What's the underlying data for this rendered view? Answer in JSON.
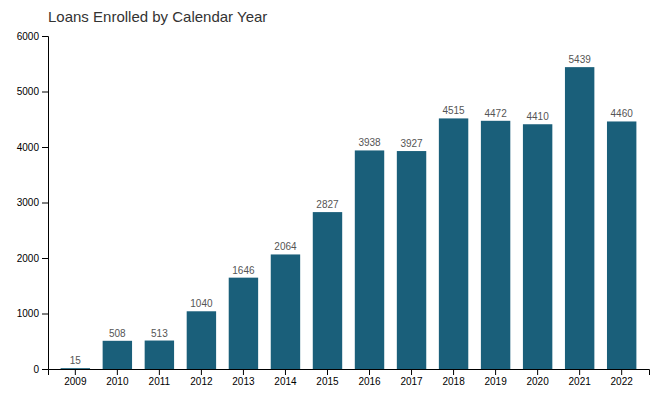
{
  "chart_data": {
    "type": "bar",
    "title": "Loans Enrolled by Calendar Year",
    "categories": [
      "2009",
      "2010",
      "2011",
      "2012",
      "2013",
      "2014",
      "2015",
      "2016",
      "2017",
      "2018",
      "2019",
      "2020",
      "2021",
      "2022"
    ],
    "values": [
      15,
      508,
      513,
      1040,
      1646,
      2064,
      2827,
      3938,
      3927,
      4515,
      4472,
      4410,
      5439,
      4460
    ],
    "color": "#1a5f7a",
    "ylim": [
      0,
      6000
    ],
    "yticks": [
      0,
      1000,
      2000,
      3000,
      4000,
      5000,
      6000
    ],
    "grid": false,
    "data_labels": true
  }
}
